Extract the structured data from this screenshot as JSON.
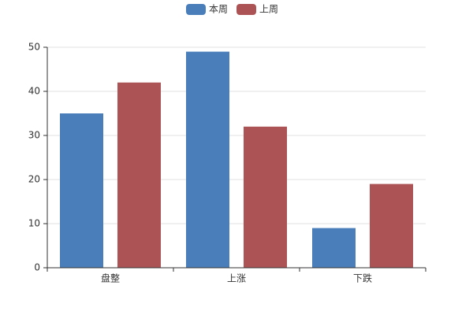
{
  "chart_data": {
    "type": "bar",
    "categories": [
      "盘整",
      "上涨",
      "下跌"
    ],
    "series": [
      {
        "name": "本周",
        "color": "#4a7ebb",
        "values": [
          35,
          49,
          9
        ]
      },
      {
        "name": "上周",
        "color": "#ac5356",
        "values": [
          42,
          32,
          19
        ]
      }
    ],
    "ylim": [
      0,
      50
    ],
    "yticks": [
      0,
      10,
      20,
      30,
      40,
      50
    ],
    "grid": true,
    "legend": "top"
  }
}
